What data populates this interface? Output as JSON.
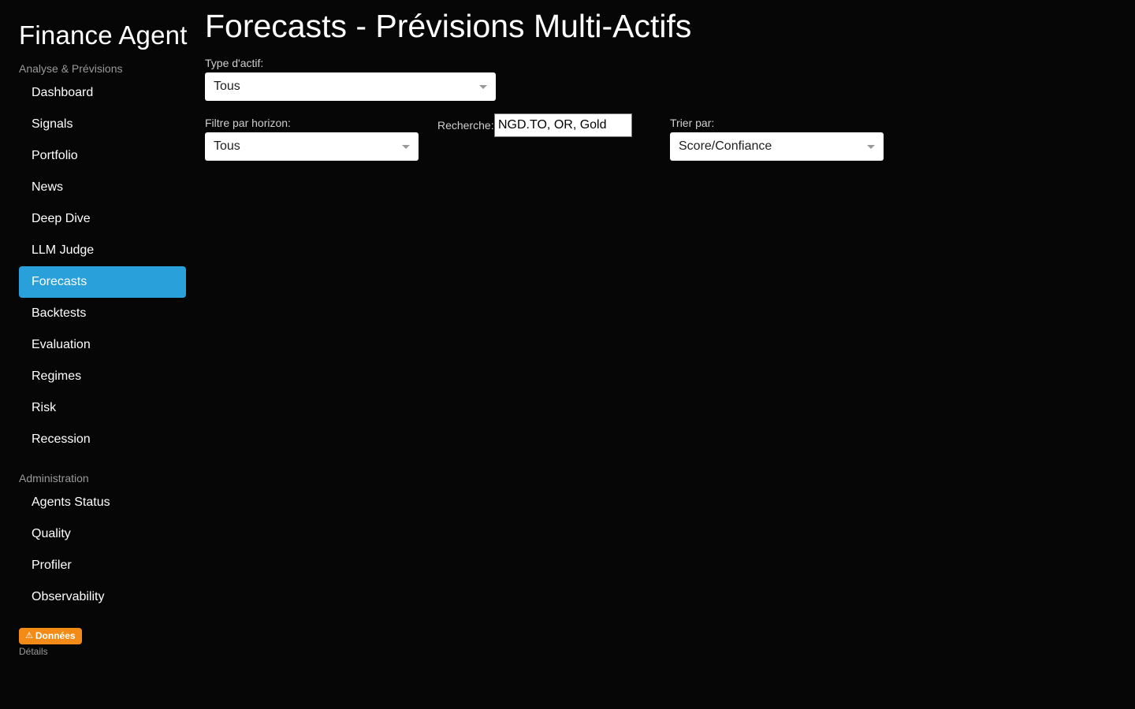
{
  "sidebar": {
    "brand": "Finance Agent",
    "section_analysis": "Analyse & Prévisions",
    "analysis_items": [
      {
        "label": "Dashboard"
      },
      {
        "label": "Signals"
      },
      {
        "label": "Portfolio"
      },
      {
        "label": "News"
      },
      {
        "label": "Deep Dive"
      },
      {
        "label": "LLM Judge"
      },
      {
        "label": "Forecasts",
        "active": true
      },
      {
        "label": "Backtests"
      },
      {
        "label": "Evaluation"
      },
      {
        "label": "Regimes"
      },
      {
        "label": "Risk"
      },
      {
        "label": "Recession"
      }
    ],
    "section_admin": "Administration",
    "admin_items": [
      {
        "label": "Agents Status"
      },
      {
        "label": "Quality"
      },
      {
        "label": "Profiler"
      },
      {
        "label": "Observability"
      }
    ],
    "badge": {
      "icon": "warning-icon",
      "glyph": "⚠",
      "label": "Données",
      "color": "#f28c17"
    },
    "details_label": "Détails"
  },
  "main": {
    "title": "Forecasts - Prévisions Multi-Actifs",
    "asset_type": {
      "label": "Type d'actif:",
      "value": "Tous"
    },
    "horizon_filter": {
      "label": "Filtre par horizon:",
      "value": "Tous"
    },
    "search": {
      "label": "Recherche:",
      "value": "NGD.TO, OR, Gold"
    },
    "sort": {
      "label": "Trier par:",
      "value": "Score/Confiance"
    }
  },
  "colors": {
    "background": "#060606",
    "accent": "#2aa0db",
    "warning": "#f28c17"
  }
}
